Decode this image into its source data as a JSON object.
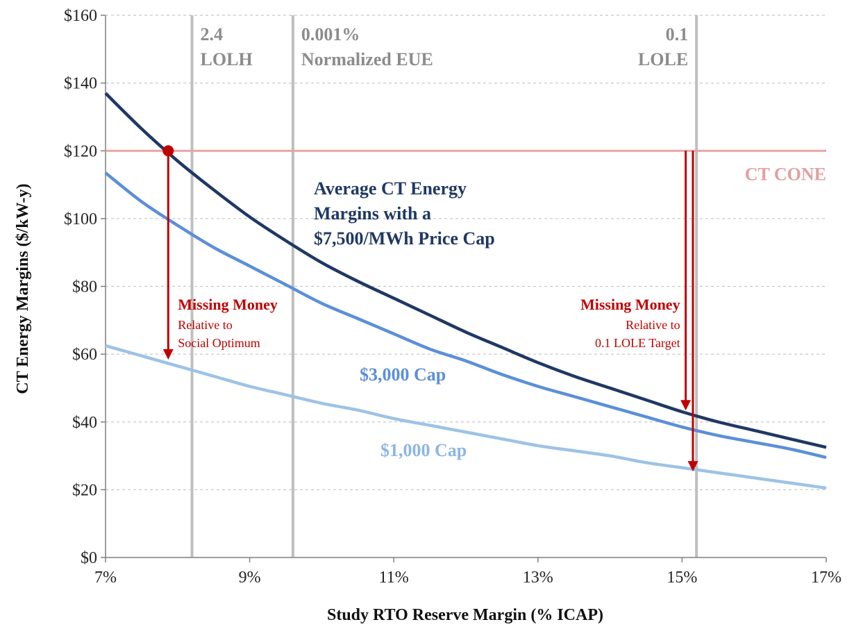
{
  "chart_data": {
    "type": "line",
    "xlabel": "Study RTO Reserve Margin (% ICAP)",
    "ylabel": "CT Energy Margins ($/kW-y)",
    "xlim": [
      7,
      17
    ],
    "ylim": [
      0,
      160
    ],
    "x_ticks": [
      7,
      9,
      11,
      13,
      15,
      17
    ],
    "x_tick_labels": [
      "7%",
      "9%",
      "11%",
      "13%",
      "15%",
      "17%"
    ],
    "y_ticks": [
      0,
      20,
      40,
      60,
      80,
      100,
      120,
      140,
      160
    ],
    "y_tick_labels": [
      "$0",
      "$20",
      "$40",
      "$60",
      "$80",
      "$100",
      "$120",
      "$140",
      "$160"
    ],
    "grid": "horizontal dashed",
    "series": [
      {
        "label_lines": [
          "Average CT Energy",
          "Margins with a",
          "$7,500/MWh Price Cap"
        ],
        "color": "#1f3864",
        "x": [
          7,
          7.5,
          8,
          8.5,
          9,
          9.5,
          10,
          10.5,
          11,
          11.5,
          12,
          12.5,
          13,
          13.5,
          14,
          14.5,
          15,
          15.5,
          16,
          16.5,
          17
        ],
        "values": [
          137,
          126.5,
          117,
          108.5,
          100.5,
          93.5,
          87,
          81.5,
          76.5,
          71.5,
          66.5,
          62,
          57.5,
          53.5,
          50,
          46.5,
          43,
          40,
          37.5,
          35,
          32.5
        ]
      },
      {
        "label_lines": [
          "$3,000 Cap"
        ],
        "color": "#5b8fd9",
        "x": [
          7,
          7.5,
          8,
          8.5,
          9,
          9.5,
          10,
          10.5,
          11,
          11.5,
          12,
          12.5,
          13,
          13.5,
          14,
          14.5,
          15,
          15.5,
          16,
          16.5,
          17
        ],
        "values": [
          113.5,
          105,
          98,
          91.5,
          86,
          80.5,
          75,
          70.5,
          66,
          61.5,
          58,
          54,
          50.5,
          47.5,
          44.5,
          41.5,
          38.5,
          36,
          34,
          32,
          29.5
        ]
      },
      {
        "label_lines": [
          "$1,000 Cap"
        ],
        "color": "#9dc3e6",
        "x": [
          7,
          7.5,
          8,
          8.5,
          9,
          9.5,
          10,
          10.5,
          11,
          11.5,
          12,
          12.5,
          13,
          13.5,
          14,
          14.5,
          15,
          15.5,
          16,
          16.5,
          17
        ],
        "values": [
          62.5,
          59.5,
          56.5,
          53.5,
          50.5,
          48,
          45.5,
          43.5,
          41,
          39,
          37,
          35,
          33,
          31.5,
          30,
          28,
          26.5,
          25,
          23.5,
          22,
          20.5
        ]
      }
    ],
    "horizontal_line": {
      "label": "CT CONE",
      "y": 120,
      "color": "#e6a5a5"
    },
    "reference_lines": [
      {
        "x": 8.2,
        "label_lines": [
          "2.4",
          "LOLH"
        ],
        "align": "left"
      },
      {
        "x": 9.6,
        "label_lines": [
          "0.001%",
          "Normalized EUE"
        ],
        "align": "left"
      },
      {
        "x": 15.2,
        "label_lines": [
          "0.1",
          "LOLE"
        ],
        "align": "right"
      }
    ],
    "marker": {
      "x": 7.87,
      "y": 120,
      "color": "#c00000"
    },
    "annotations": [
      {
        "title": "Missing Money",
        "sub_lines": [
          "Relative to",
          "Social Optimum"
        ],
        "color": "#c00000",
        "align": "left",
        "arrows": [
          {
            "x": 7.87,
            "from": 120,
            "to": 59
          }
        ]
      },
      {
        "title": "Missing Money",
        "sub_lines": [
          "Relative to",
          "0.1 LOLE Target"
        ],
        "color": "#c00000",
        "align": "right",
        "arrows": [
          {
            "x": 15.05,
            "from": 120,
            "to": 44
          },
          {
            "x": 15.15,
            "from": 120,
            "to": 26
          }
        ]
      }
    ]
  }
}
